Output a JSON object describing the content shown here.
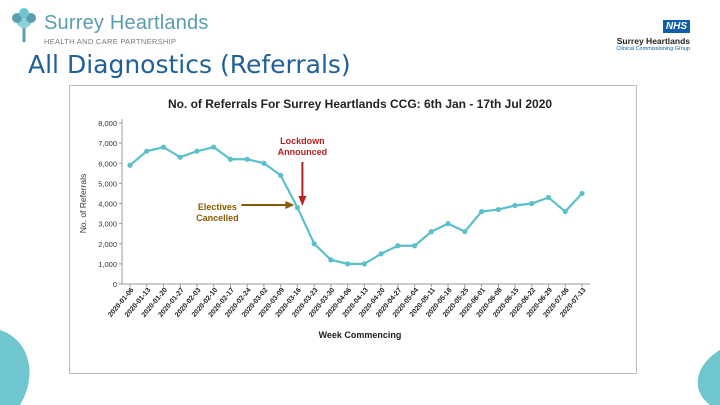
{
  "header": {
    "logo_name": "Surrey Heartlands",
    "logo_subtitle": "HEALTH AND CARE PARTNERSHIP",
    "nhs_badge": "NHS",
    "nhs_org": "Surrey Heartlands",
    "nhs_subtitle": "Clinical Commissioning Group"
  },
  "slide": {
    "title": "All Diagnostics (Referrals)"
  },
  "colors": {
    "series": "#5cc0c8",
    "annotation": "#b22222",
    "electives": "#8a5a00",
    "title": "#1f5f9a",
    "accent": "#6fc6cf"
  },
  "chart_data": {
    "type": "line",
    "title": "No. of Referrals For Surrey Heartlands CCG: 6th Jan - 17th Jul 2020",
    "xlabel": "Week Commencing",
    "ylabel": "No. of Referrals",
    "ylim": [
      0,
      8000
    ],
    "yticks": [
      "0",
      "1,000",
      "2,000",
      "3,000",
      "4,000",
      "5,000",
      "6,000",
      "7,000",
      "8,000"
    ],
    "grid": false,
    "categories": [
      "2020-01-06",
      "2020-01-13",
      "2020-01-20",
      "2020-01-27",
      "2020-02-03",
      "2020-02-10",
      "2020-02-17",
      "2020-02-24",
      "2020-03-02",
      "2020-03-09",
      "2020-03-16",
      "2020-03-23",
      "2020-03-30",
      "2020-04-06",
      "2020-04-13",
      "2020-04-20",
      "2020-04-27",
      "2020-05-04",
      "2020-05-11",
      "2020-05-18",
      "2020-05-25",
      "2020-06-01",
      "2020-06-08",
      "2020-06-15",
      "2020-06-22",
      "2020-06-29",
      "2020-07-06",
      "2020-07-13"
    ],
    "series": [
      {
        "values": [
          5900,
          6600,
          6800,
          6300,
          6600,
          6800,
          6200,
          6200,
          6000,
          5400,
          3800,
          2000,
          1200,
          1000,
          1000,
          1500,
          1900,
          1900,
          2600,
          3000,
          2600,
          3600,
          3700,
          3900,
          4000,
          4300,
          3600,
          4500
        ]
      }
    ],
    "annotations": [
      {
        "text": [
          "Lockdown",
          "Announced"
        ],
        "category": "2020-03-16",
        "kind": "arrow"
      },
      {
        "text": [
          "Electives",
          "Cancelled"
        ],
        "category": "2020-03-16",
        "kind": "arrow"
      }
    ]
  }
}
